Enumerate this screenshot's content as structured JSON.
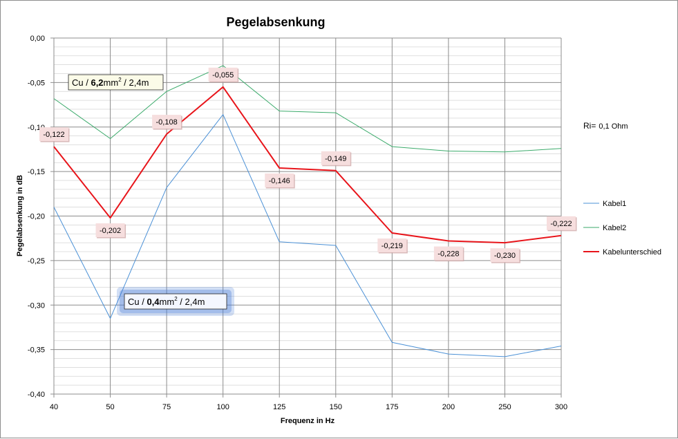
{
  "chart_data": {
    "type": "line",
    "title": "Pegelabsenkung",
    "xlabel": "Frequenz in Hz",
    "ylabel": "Pegelabsenkung in dB",
    "ylim": [
      -0.4,
      0.0
    ],
    "yticks": [
      "0,00",
      "-0,05",
      "-0,10",
      "-0,15",
      "-0,20",
      "-0,25",
      "-0,30",
      "-0,35",
      "-0,40"
    ],
    "categories": [
      "40",
      "50",
      "75",
      "100",
      "125",
      "150",
      "175",
      "200",
      "250",
      "300"
    ],
    "grid": true,
    "legend_position": "right",
    "series": [
      {
        "name": "Kabel1",
        "color": "#4a90d6",
        "width": 1,
        "values": [
          -0.19,
          -0.315,
          -0.168,
          -0.086,
          -0.229,
          -0.233,
          -0.342,
          -0.355,
          -0.358,
          -0.346
        ]
      },
      {
        "name": "Kabel2",
        "color": "#3aaa6a",
        "width": 1,
        "values": [
          -0.068,
          -0.113,
          -0.06,
          -0.031,
          -0.082,
          -0.084,
          -0.122,
          -0.127,
          -0.128,
          -0.124
        ]
      },
      {
        "name": "Kabelunterschied",
        "color": "#e8141a",
        "width": 2,
        "values": [
          -0.122,
          -0.202,
          -0.108,
          -0.055,
          -0.146,
          -0.149,
          -0.219,
          -0.228,
          -0.23,
          -0.222
        ],
        "labels": [
          "-0,122",
          "-0,202",
          "-0,108",
          "-0,055",
          "-0,146",
          "-0,149",
          "-0,219",
          "-0,228",
          "-0,230",
          "-0,222"
        ]
      }
    ],
    "annotations": {
      "upper_prefix": "Cu / ",
      "upper_bold": "6,2",
      "upper_unit": "mm",
      "upper_sup": "2",
      "upper_suffix": " / 2,4m",
      "lower_prefix": "Cu / ",
      "lower_bold": "0,4",
      "lower_unit": "mm",
      "lower_sup": "2",
      "lower_suffix": " / 2,4m",
      "ri_label": "Ri=",
      "ri_value": "0,1  Ohm"
    }
  }
}
